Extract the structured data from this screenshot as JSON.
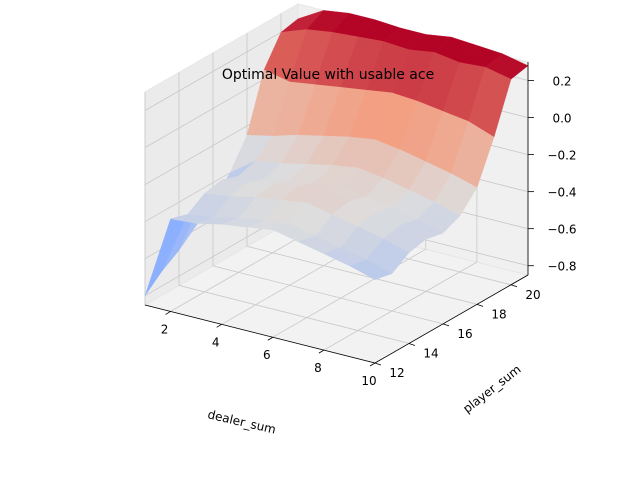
{
  "chart_data": {
    "type": "surface3d",
    "title": "Optimal Value with usable ace",
    "xlabel": "dealer_sum",
    "ylabel": "player_sum",
    "zlabel": "",
    "colormap": "coolwarm",
    "xlim": [
      1,
      10
    ],
    "ylim": [
      12,
      21
    ],
    "zlim": [
      -0.85,
      0.3
    ],
    "x_ticks": [
      2,
      4,
      6,
      8,
      10
    ],
    "y_ticks": [
      12,
      14,
      16,
      18,
      20
    ],
    "z_ticks": [
      0.2,
      0.0,
      -0.2,
      -0.4,
      -0.6,
      -0.8
    ],
    "z_tick_labels": [
      "0.2",
      "0.0",
      "−0.2",
      "−0.4",
      "−0.6",
      "−0.8"
    ],
    "x": [
      1,
      2,
      3,
      4,
      5,
      6,
      7,
      8,
      9,
      10
    ],
    "y": [
      12,
      13,
      14,
      15,
      16,
      17,
      18,
      19,
      20,
      21
    ],
    "z": [
      [
        -0.8,
        -0.72,
        -0.66,
        -0.58,
        -0.5,
        -0.4,
        -0.25,
        0.05,
        0.2,
        0.22
      ],
      [
        -0.35,
        -0.38,
        -0.32,
        -0.3,
        -0.33,
        -0.3,
        -0.22,
        0.02,
        0.25,
        0.3
      ],
      [
        -0.34,
        -0.36,
        -0.3,
        -0.28,
        -0.31,
        -0.28,
        -0.18,
        0.04,
        0.27,
        0.32
      ],
      [
        -0.31,
        -0.33,
        -0.27,
        -0.25,
        -0.28,
        -0.25,
        -0.15,
        0.06,
        0.28,
        0.32
      ],
      [
        -0.29,
        -0.31,
        -0.25,
        -0.23,
        -0.26,
        -0.22,
        -0.12,
        0.08,
        0.29,
        0.31
      ],
      [
        -0.27,
        -0.29,
        -0.23,
        -0.2,
        -0.24,
        -0.2,
        -0.1,
        0.1,
        0.28,
        0.31
      ],
      [
        -0.3,
        -0.32,
        -0.26,
        -0.24,
        -0.27,
        -0.22,
        -0.12,
        0.09,
        0.3,
        0.33
      ],
      [
        -0.33,
        -0.35,
        -0.29,
        -0.27,
        -0.29,
        -0.25,
        -0.15,
        0.07,
        0.28,
        0.32
      ],
      [
        -0.36,
        -0.38,
        -0.32,
        -0.3,
        -0.32,
        -0.28,
        -0.18,
        0.05,
        0.29,
        0.31
      ],
      [
        -0.4,
        -0.42,
        -0.36,
        -0.34,
        -0.36,
        -0.32,
        -0.22,
        0.0,
        0.26,
        0.28
      ]
    ],
    "grid": true
  }
}
